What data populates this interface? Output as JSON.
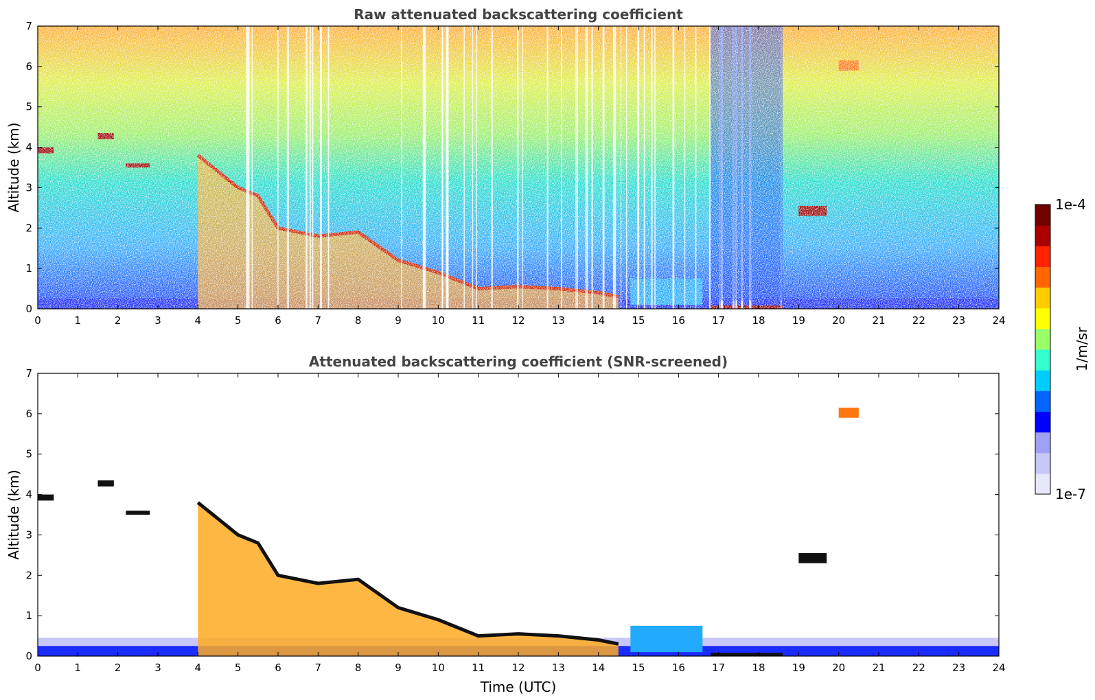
{
  "chart_data": [
    {
      "type": "heatmap",
      "title": "Raw attenuated backscattering coefficient",
      "xlabel": "",
      "ylabel": "Altitude (km)",
      "xlim": [
        0,
        24
      ],
      "ylim": [
        0,
        7
      ],
      "xticks": [
        "0",
        "1",
        "2",
        "3",
        "4",
        "5",
        "6",
        "7",
        "8",
        "9",
        "10",
        "11",
        "12",
        "13",
        "14",
        "15",
        "16",
        "17",
        "18",
        "19",
        "20",
        "21",
        "22",
        "23",
        "24"
      ],
      "yticks": [
        "0",
        "1",
        "2",
        "3",
        "4",
        "5",
        "6",
        "7"
      ],
      "features": [
        {
          "name": "boundary layer",
          "x_range": [
            0,
            24
          ],
          "y_range": [
            0,
            0.25
          ],
          "level": "low"
        },
        {
          "name": "descending aerosol/cloud layer",
          "path_x": [
            4.0,
            5.0,
            5.5,
            6.0,
            7.0,
            8.0,
            9.0,
            10.0,
            11.0,
            12.0,
            13.0,
            14.0,
            14.5
          ],
          "path_y": [
            3.8,
            3.0,
            2.8,
            2.0,
            1.8,
            1.9,
            1.2,
            0.9,
            0.5,
            0.55,
            0.5,
            0.4,
            0.3
          ],
          "level": "high"
        },
        {
          "name": "cloud patch",
          "x_range": [
            0,
            0.4
          ],
          "y_range": [
            3.85,
            4.0
          ],
          "level": "max"
        },
        {
          "name": "cloud patch",
          "x_range": [
            1.5,
            1.9
          ],
          "y_range": [
            4.2,
            4.35
          ],
          "level": "max"
        },
        {
          "name": "cloud patch",
          "x_range": [
            2.2,
            2.8
          ],
          "y_range": [
            3.5,
            3.6
          ],
          "level": "max"
        },
        {
          "name": "cloud patch",
          "x_range": [
            20.0,
            20.5
          ],
          "y_range": [
            5.9,
            6.15
          ],
          "level": "high"
        },
        {
          "name": "cloud patch",
          "x_range": [
            19.0,
            19.7
          ],
          "y_range": [
            2.3,
            2.55
          ],
          "level": "max"
        },
        {
          "name": "low layer",
          "x_range": [
            14.8,
            16.6
          ],
          "y_range": [
            0.1,
            0.75
          ],
          "level": "medium"
        },
        {
          "name": "surface layer",
          "x_range": [
            16.8,
            18.6
          ],
          "y_range": [
            0.0,
            0.08
          ],
          "level": "max"
        }
      ]
    },
    {
      "type": "heatmap",
      "title": "Attenuated backscattering coefficient (SNR-screened)",
      "xlabel": "Time (UTC)",
      "ylabel": "Altitude (km)",
      "xlim": [
        0,
        24
      ],
      "ylim": [
        0,
        7
      ],
      "xticks": [
        "0",
        "1",
        "2",
        "3",
        "4",
        "5",
        "6",
        "7",
        "8",
        "9",
        "10",
        "11",
        "12",
        "13",
        "14",
        "15",
        "16",
        "17",
        "18",
        "19",
        "20",
        "21",
        "22",
        "23",
        "24"
      ],
      "yticks": [
        "0",
        "1",
        "2",
        "3",
        "4",
        "5",
        "6",
        "7"
      ],
      "screened": true
    }
  ],
  "colorbar": {
    "label": "1/m/sr",
    "max_label": "1e-4",
    "min_label": "1e-7",
    "colors": [
      "#e8e8fc",
      "#c8c8f8",
      "#a0a0f4",
      "#0000ff",
      "#0066ff",
      "#00ccff",
      "#33ffcc",
      "#99ff66",
      "#ffff00",
      "#ffcc00",
      "#ff6600",
      "#ff2200",
      "#aa0000",
      "#700000"
    ]
  }
}
